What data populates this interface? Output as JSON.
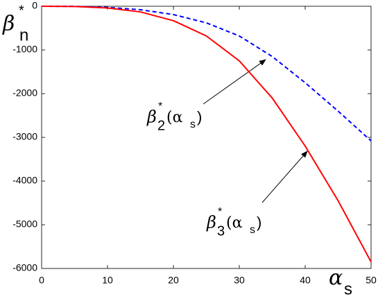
{
  "chart_data": {
    "type": "line",
    "x": [
      0,
      5,
      10,
      15,
      20,
      25,
      30,
      35,
      40,
      45,
      50
    ],
    "series": [
      {
        "color": "#0000ff",
        "dash": true,
        "values": [
          0,
          -3,
          -25,
          -80,
          -190,
          -380,
          -680,
          -1150,
          -1750,
          -2400,
          -3080
        ]
      },
      {
        "color": "#ff0000",
        "dash": false,
        "values": [
          0,
          -5,
          -40,
          -130,
          -330,
          -680,
          -1250,
          -2100,
          -3200,
          -4450,
          -5850
        ]
      }
    ],
    "xlim": [
      0,
      50
    ],
    "xticks": [
      0,
      10,
      20,
      30,
      40,
      50
    ],
    "ylim": [
      -6000,
      0
    ],
    "yticks": [
      0,
      -1000,
      -2000,
      -3000,
      -4000,
      -5000,
      -6000
    ],
    "y_label": [
      "β",
      "*",
      "n"
    ],
    "x_label": [
      "α",
      "s"
    ],
    "annotations": [
      [
        "β",
        "*",
        "2",
        "(α",
        "s",
        ")"
      ],
      [
        "β",
        "*",
        "3",
        "(α",
        "s",
        ")"
      ]
    ]
  }
}
